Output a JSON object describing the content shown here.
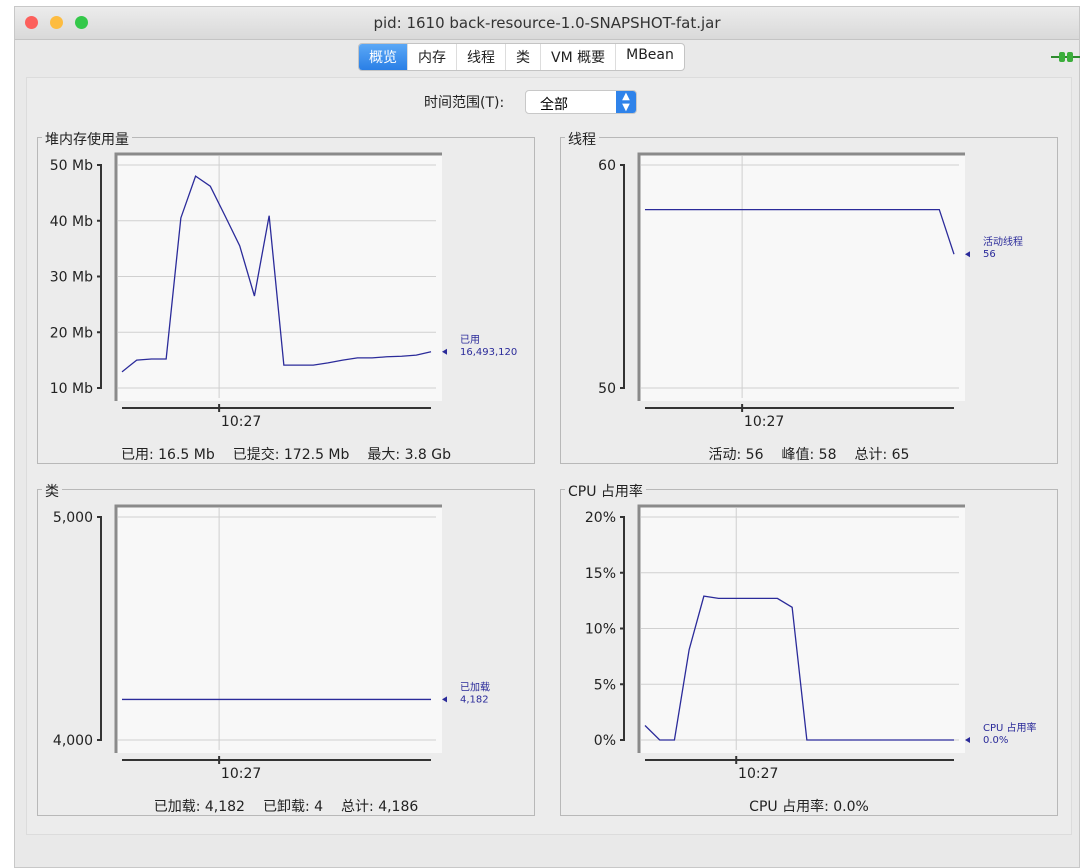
{
  "window": {
    "title": "pid: 1610 back-resource-1.0-SNAPSHOT-fat.jar"
  },
  "tabs": [
    {
      "label": "概览",
      "active": true
    },
    {
      "label": "内存"
    },
    {
      "label": "线程"
    },
    {
      "label": "类"
    },
    {
      "label": "VM 概要"
    },
    {
      "label": "MBean"
    }
  ],
  "connection_icon": "plug-connected-icon",
  "time_range": {
    "label": "时间范围(T):",
    "value": "全部"
  },
  "colors": {
    "line": "#2b2b9a",
    "accent": "#2f83ea"
  },
  "chart_data": [
    {
      "type": "line",
      "title": "堆内存使用量",
      "x_tick_label": "10:27",
      "x_tick_index": 6.6,
      "yticks": [
        "10 Mb",
        "20 Mb",
        "30 Mb",
        "40 Mb",
        "50 Mb"
      ],
      "ylim": [
        10,
        50
      ],
      "ytick_values": [
        10,
        20,
        30,
        40,
        50
      ],
      "series": [
        {
          "name": "已用",
          "latest": "16,493,120",
          "values": [
            12.9,
            15.0,
            15.2,
            15.2,
            40.5,
            48.0,
            46.2,
            40.9,
            35.5,
            26.5,
            40.9,
            14.1,
            14.1,
            14.1,
            14.5,
            15.0,
            15.4,
            15.4,
            15.6,
            15.7,
            15.9,
            16.5
          ]
        }
      ],
      "summary": [
        "已用: 16.5 Mb",
        "已提交: 172.5 Mb",
        "最大: 3.8 Gb"
      ]
    },
    {
      "type": "line",
      "title": "线程",
      "x_tick_label": "10:27",
      "x_tick_index": 6.6,
      "yticks": [
        "50",
        "60"
      ],
      "ylim": [
        50,
        60
      ],
      "ytick_values": [
        50,
        60
      ],
      "series": [
        {
          "name": "活动线程",
          "latest": "56",
          "values": [
            58,
            58,
            58,
            58,
            58,
            58,
            58,
            58,
            58,
            58,
            58,
            58,
            58,
            58,
            58,
            58,
            58,
            58,
            58,
            58,
            58,
            56
          ]
        }
      ],
      "summary": [
        "活动: 56",
        "峰值: 58",
        "总计: 65"
      ]
    },
    {
      "type": "line",
      "title": "类",
      "x_tick_label": "10:27",
      "x_tick_index": 6.6,
      "yticks": [
        "4,000",
        "5,000"
      ],
      "ylim": [
        4000,
        5000
      ],
      "ytick_values": [
        4000,
        5000
      ],
      "series": [
        {
          "name": "已加载",
          "latest": "4,182",
          "values": [
            4182,
            4182,
            4182,
            4182,
            4182,
            4182,
            4182,
            4182,
            4182,
            4182,
            4182,
            4182,
            4182,
            4182,
            4182,
            4182,
            4182,
            4182,
            4182,
            4182,
            4182,
            4182
          ]
        }
      ],
      "summary": [
        "已加载: 4,182",
        "已卸载: 4",
        "总计: 4,186"
      ]
    },
    {
      "type": "line",
      "title": "CPU 占用率",
      "x_tick_label": "10:27",
      "x_tick_index": 6.2,
      "yticks": [
        "0%",
        "5%",
        "10%",
        "15%",
        "20%"
      ],
      "ylim": [
        0,
        20
      ],
      "ytick_values": [
        0,
        5,
        10,
        15,
        20
      ],
      "series": [
        {
          "name": "CPU 占用率",
          "latest": "0.0%",
          "values": [
            1.3,
            0,
            0,
            8.1,
            12.9,
            12.7,
            12.7,
            12.7,
            12.7,
            12.7,
            11.9,
            0,
            0,
            0,
            0,
            0,
            0,
            0,
            0,
            0,
            0,
            0
          ]
        }
      ],
      "summary": [
        "CPU 占用率: 0.0%"
      ]
    }
  ]
}
